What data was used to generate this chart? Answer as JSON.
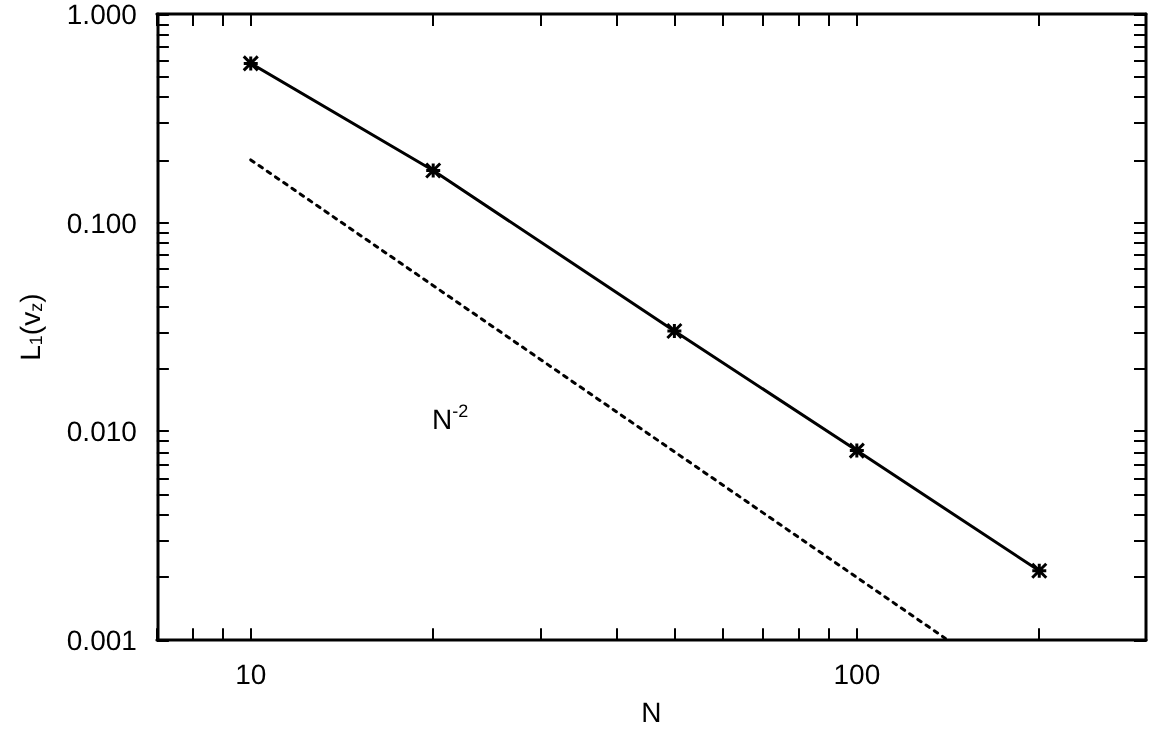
{
  "chart_data": {
    "type": "line",
    "xlabel": "N",
    "ylabel": "L$_{1}$(v$_{z}$)",
    "log": "xy",
    "grid": false,
    "marker": "cross",
    "line_style": "solid",
    "xlim": [
      7,
      300
    ],
    "ylim": [
      0.001,
      1
    ],
    "xticks": [
      {
        "value": 7,
        "label": null
      },
      {
        "value": 8,
        "label": null
      },
      {
        "value": 9,
        "label": null
      },
      10,
      {
        "value": 20,
        "label": null
      },
      {
        "value": 30,
        "label": null
      },
      {
        "value": 40,
        "label": null
      },
      {
        "value": 50,
        "label": null
      },
      {
        "value": 60,
        "label": null
      },
      {
        "value": 70,
        "label": null
      },
      {
        "value": 80,
        "label": null
      },
      {
        "value": 90,
        "label": null
      },
      100,
      {
        "value": 200,
        "label": null
      }
    ],
    "yticks": [
      {
        "value": 0.001,
        "label": "0.001"
      },
      {
        "value": 0.002,
        "label": null
      },
      {
        "value": 0.003,
        "label": null
      },
      {
        "value": 0.004,
        "label": null
      },
      {
        "value": 0.005,
        "label": null
      },
      {
        "value": 0.006,
        "label": null
      },
      {
        "value": 0.007,
        "label": null
      },
      {
        "value": 0.008,
        "label": null
      },
      {
        "value": 0.009,
        "label": null
      },
      {
        "value": 0.01,
        "label": "0.010"
      },
      {
        "value": 0.02,
        "label": null
      },
      {
        "value": 0.03,
        "label": null
      },
      {
        "value": 0.04,
        "label": null
      },
      {
        "value": 0.05,
        "label": null
      },
      {
        "value": 0.06,
        "label": null
      },
      {
        "value": 0.07,
        "label": null
      },
      {
        "value": 0.08,
        "label": null
      },
      {
        "value": 0.09,
        "label": null
      },
      {
        "value": 0.1,
        "label": "0.100"
      },
      {
        "value": 0.2,
        "label": null
      },
      {
        "value": 0.3,
        "label": null
      },
      {
        "value": 0.4,
        "label": null
      },
      {
        "value": 0.5,
        "label": null
      },
      {
        "value": 0.6,
        "label": null
      },
      {
        "value": 0.7,
        "label": null
      },
      {
        "value": 0.8,
        "label": null
      },
      {
        "value": 0.9,
        "label": null
      },
      {
        "value": 1,
        "label": "1.000"
      }
    ],
    "series": [
      {
        "color": "#000000",
        "x": [
          10,
          20,
          50,
          100,
          200
        ],
        "values": [
          0.58,
          0.178,
          0.0303,
          0.0081,
          0.00215
        ]
      },
      {
        "color": "#000000",
        "x": [
          10,
          140
        ],
        "values": [
          0.2,
          0.00102
        ],
        "marker": "none",
        "line_style": "dotted"
      }
    ],
    "annotations": [
      "N$^{-2}$"
    ]
  }
}
